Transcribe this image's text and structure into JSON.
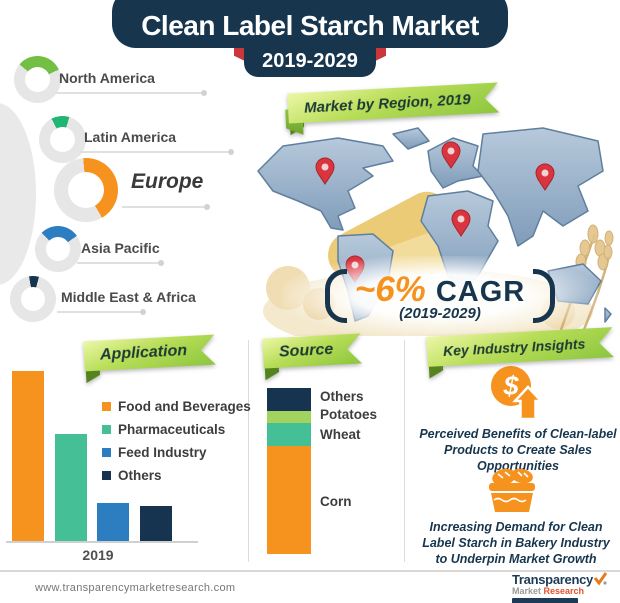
{
  "header": {
    "title": "Clean Label Starch Market",
    "period": "2019-2029"
  },
  "region_section": {
    "badge": "Market by Region, 2019",
    "regions": [
      {
        "name": "North America",
        "color": "#72bf44",
        "start_deg": -50,
        "sweep_deg": 115,
        "share_pct_est": 30
      },
      {
        "name": "Latin America",
        "color": "#21b573",
        "start_deg": -28,
        "sweep_deg": 45,
        "share_pct_est": 12
      },
      {
        "name": "Europe",
        "color": "#f6921e",
        "start_deg": -5,
        "sweep_deg": 155,
        "share_pct_est": 43
      },
      {
        "name": "Asia Pacific",
        "color": "#2d7dc1",
        "start_deg": -45,
        "sweep_deg": 100,
        "share_pct_est": 27
      },
      {
        "name": "Middle East & Africa",
        "color": "#16334f",
        "start_deg": -10,
        "sweep_deg": 25,
        "share_pct_est": 7
      }
    ],
    "cagr": {
      "value": "~6%",
      "label": "CAGR",
      "period": "(2019-2029)"
    }
  },
  "application": {
    "badge": "Application",
    "x_label": "2019",
    "legend": [
      {
        "label": "Food and Beverages",
        "color": "#f6921e"
      },
      {
        "label": "Pharmaceuticals",
        "color": "#45c096"
      },
      {
        "label": "Feed Industry",
        "color": "#2d7dc1"
      },
      {
        "label": "Others",
        "color": "#16334f"
      }
    ]
  },
  "source": {
    "badge": "Source",
    "segments": [
      {
        "label": "Others",
        "color": "#16334f",
        "share": 14
      },
      {
        "label": "Potatoes",
        "color": "#a2d35f",
        "share": 7
      },
      {
        "label": "Wheat",
        "color": "#45c096",
        "share": 14
      },
      {
        "label": "Corn",
        "color": "#f6921e",
        "share": 65
      }
    ]
  },
  "insights": {
    "badge": "Key Industry Insights",
    "items": [
      {
        "icon": "dollar-growth-icon",
        "text": "Perceived Benefits of Clean-label Products to Create Sales Opportunities"
      },
      {
        "icon": "bakery-basket-icon",
        "text": "Increasing Demand for Clean Label Starch in Bakery Industry to Underpin Market Growth"
      }
    ]
  },
  "footer": {
    "website": "www.transparencymarketresearch.com",
    "logo_line1": "Transparency",
    "logo_line2_a": "Market",
    "logo_line2_b": "Research"
  },
  "chart_data": [
    {
      "type": "pie",
      "title": "Market by Region, 2019",
      "categories": [
        "North America",
        "Latin America",
        "Europe",
        "Asia Pacific",
        "Middle East & Africa"
      ],
      "values": [
        30,
        12,
        43,
        27,
        7
      ],
      "note": "five separate donut gauges; shares estimated from arc angles, no numeric labels shown",
      "legend_position": "callout lines beside each donut"
    },
    {
      "type": "bar",
      "title": "Application",
      "categories": [
        "Food and Beverages",
        "Pharmaceuticals",
        "Feed Industry",
        "Others"
      ],
      "values": [
        100,
        63,
        23,
        21
      ],
      "x": [
        "2019"
      ],
      "xlabel": "2019",
      "ylabel": "",
      "note": "relative bar heights (max bar = 100); no value axis shown",
      "legend_position": "right of bars"
    },
    {
      "type": "bar",
      "stacked": true,
      "title": "Source",
      "categories": [
        "2019"
      ],
      "series": [
        {
          "name": "Corn",
          "values": [
            65
          ]
        },
        {
          "name": "Wheat",
          "values": [
            14
          ]
        },
        {
          "name": "Potatoes",
          "values": [
            7
          ]
        },
        {
          "name": "Others",
          "values": [
            14
          ]
        }
      ],
      "note": "single 100% stacked column, segment shares estimated visually"
    }
  ]
}
